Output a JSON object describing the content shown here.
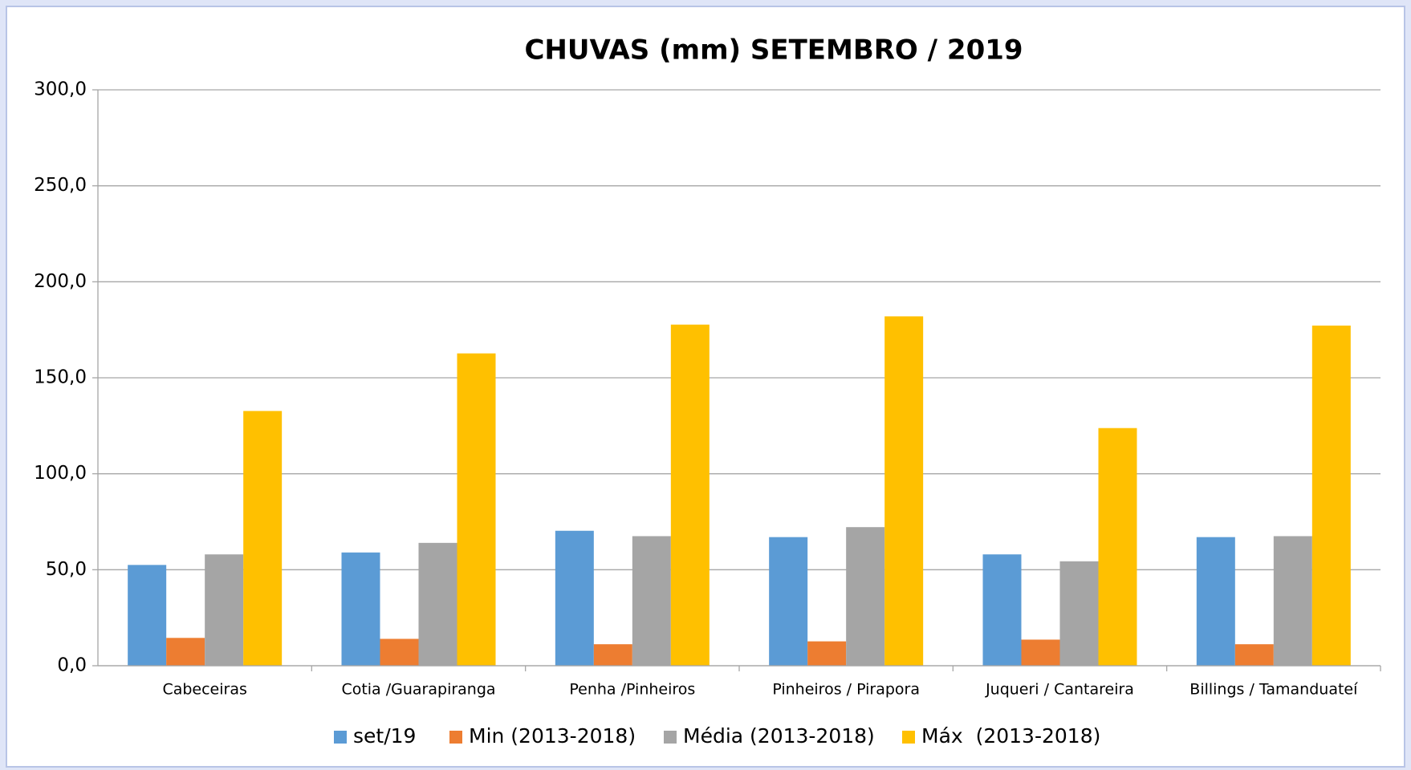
{
  "chart_data": {
    "type": "bar",
    "title": "CHUVAS (mm) SETEMBRO  / 2019",
    "categories": [
      "Cabeceiras",
      "Cotia /Guarapiranga",
      "Penha /Pinheiros",
      "Pinheiros / Pirapora",
      "Juqueri / Cantareira",
      "Billings / Tamanduateí"
    ],
    "series": [
      {
        "name": "set/19",
        "color": "#5b9bd5",
        "values": [
          52.5,
          59,
          70.3,
          67,
          58,
          67
        ]
      },
      {
        "name": "Min (2013-2018)",
        "color": "#ed7d31",
        "values": [
          14.5,
          14,
          11.2,
          12.7,
          13.6,
          11.2
        ]
      },
      {
        "name": "Média (2013-2018)",
        "color": "#a5a5a5",
        "values": [
          58,
          64,
          67.5,
          72.2,
          54.4,
          67.5
        ]
      },
      {
        "name": "Máx  (2013-2018)",
        "color": "#ffc000",
        "values": [
          132.7,
          162.7,
          177.7,
          182,
          123.8,
          177.2
        ]
      }
    ],
    "ylim": [
      0,
      300
    ],
    "yticks": [
      {
        "value": 0,
        "label": "0,0"
      },
      {
        "value": 50,
        "label": "50,0"
      },
      {
        "value": 100,
        "label": "100,0"
      },
      {
        "value": 150,
        "label": "150,0"
      },
      {
        "value": 200,
        "label": "200,0"
      },
      {
        "value": 250,
        "label": "250,0"
      },
      {
        "value": 300,
        "label": "300,0"
      }
    ],
    "grid": true,
    "legend": "bottom"
  }
}
